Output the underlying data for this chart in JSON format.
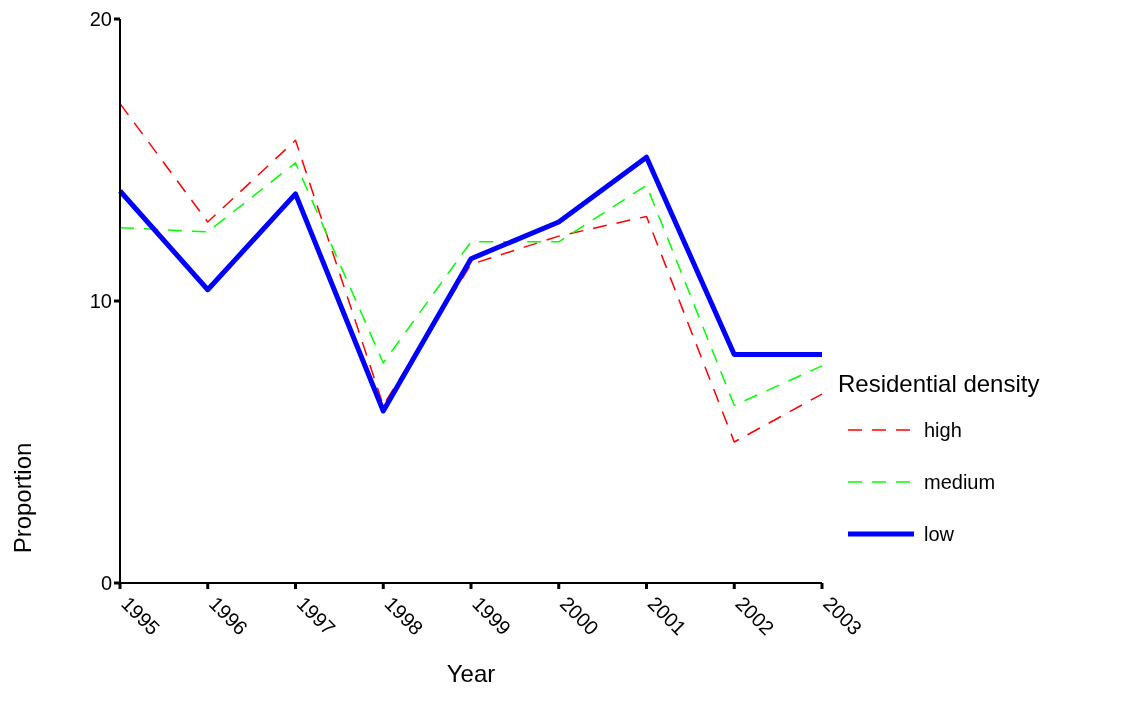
{
  "chart_data": {
    "type": "line",
    "xlabel": "Year",
    "ylabel": "Proportion",
    "legend_title": "Residential density",
    "categories": [
      "1995",
      "1996",
      "1997",
      "1998",
      "1999",
      "2000",
      "2001",
      "2002",
      "2003"
    ],
    "series": [
      {
        "name": "high",
        "color": "#ff0000",
        "line_style": "dashed",
        "values": [
          17.0,
          12.8,
          15.7,
          6.3,
          11.3,
          12.3,
          13.0,
          5.0,
          6.7
        ]
      },
      {
        "name": "medium",
        "color": "#00ff00",
        "line_style": "dashed",
        "values": [
          12.6,
          12.45,
          14.9,
          7.8,
          12.1,
          12.1,
          14.1,
          6.3,
          7.7
        ]
      },
      {
        "name": "low",
        "color": "#0000ff",
        "line_style": "solid",
        "values": [
          13.9,
          10.4,
          13.8,
          6.1,
          11.5,
          12.8,
          15.1,
          8.1,
          8.1
        ]
      }
    ],
    "ylim": [
      0,
      20
    ],
    "yticks": [
      0,
      10,
      20
    ],
    "grid": false,
    "legend": "right",
    "marker": "none"
  }
}
